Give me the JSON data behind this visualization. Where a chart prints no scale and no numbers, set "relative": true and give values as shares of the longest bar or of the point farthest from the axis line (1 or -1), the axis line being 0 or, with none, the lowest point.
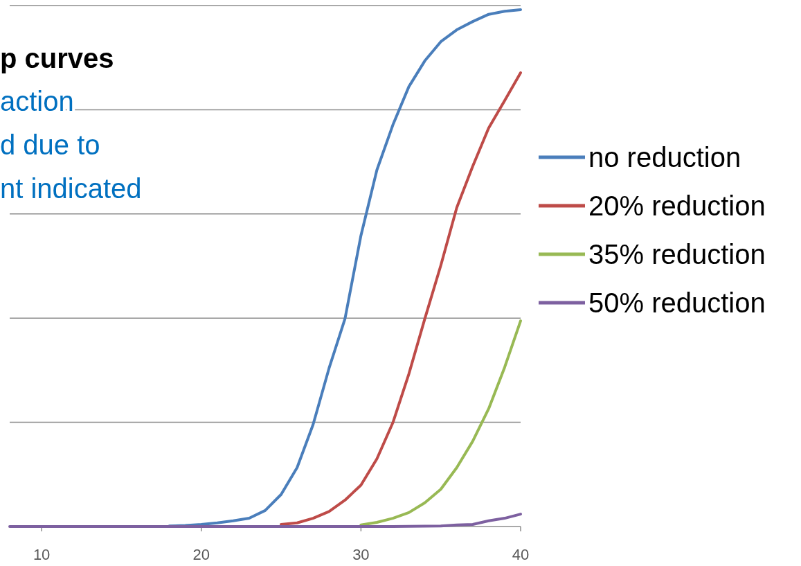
{
  "chart_data": {
    "type": "line",
    "title": "p curves",
    "subtitle": "action\nd due to\nnt indicated",
    "relative": true,
    "xlim": [
      8,
      40
    ],
    "xticks": [
      10,
      20,
      30,
      40
    ],
    "grid": "y",
    "legend": "right",
    "marker": "none",
    "line_style": "solid",
    "series": [
      {
        "name": "no reduction",
        "color": "#4a7ebb",
        "x": [
          18,
          19,
          20,
          21,
          22,
          23,
          24,
          25,
          26,
          27,
          28,
          29,
          30,
          31,
          32,
          33,
          34,
          35,
          36,
          37,
          38,
          39,
          40
        ],
        "values": [
          0.001,
          0.002,
          0.004,
          0.007,
          0.011,
          0.016,
          0.031,
          0.062,
          0.114,
          0.197,
          0.306,
          0.402,
          0.563,
          0.69,
          0.777,
          0.851,
          0.901,
          0.938,
          0.961,
          0.977,
          0.991,
          0.997,
          1
        ]
      },
      {
        "name": "20% reduction",
        "color": "#be4b48",
        "x": [
          25,
          26,
          27,
          28,
          29,
          30,
          31,
          32,
          33,
          34,
          35,
          36,
          37,
          38,
          39,
          40
        ],
        "values": [
          0.004,
          0.007,
          0.016,
          0.029,
          0.051,
          0.08,
          0.131,
          0.201,
          0.295,
          0.402,
          0.505,
          0.617,
          0.697,
          0.771,
          0.824,
          0.878
        ]
      },
      {
        "name": "35% reduction",
        "color": "#98b954",
        "x": [
          30,
          31,
          32,
          33,
          34,
          35,
          36,
          37,
          38,
          39,
          40
        ],
        "values": [
          0.003,
          0.008,
          0.016,
          0.027,
          0.046,
          0.072,
          0.114,
          0.165,
          0.228,
          0.308,
          0.398
        ]
      },
      {
        "name": "50% reduction",
        "color": "#7d60a0",
        "x": [
          8,
          12,
          16,
          20,
          24,
          28,
          32,
          35,
          36,
          37,
          38,
          39,
          40
        ],
        "values": [
          0,
          0,
          0,
          0,
          0,
          0,
          0,
          0.001,
          0.003,
          0.004,
          0.011,
          0.016,
          0.024
        ]
      }
    ]
  }
}
